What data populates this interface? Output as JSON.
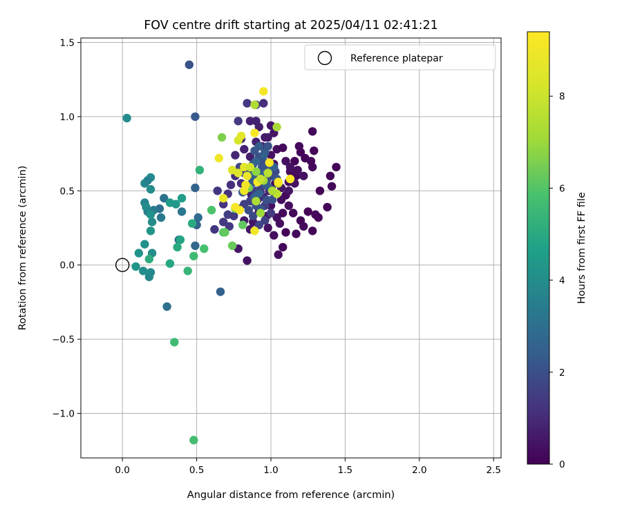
{
  "chart_data": {
    "type": "scatter",
    "title": "FOV centre drift starting at 2025/04/11 02:41:21",
    "xlabel": "Angular distance from reference (arcmin)",
    "ylabel": "Rotation from reference (arcmin)",
    "colorbar_label": "Hours from first FF file",
    "xlim": [
      -0.28,
      2.55
    ],
    "ylim": [
      -1.3,
      1.53
    ],
    "x_ticks": [
      0.0,
      0.5,
      1.0,
      1.5,
      2.0,
      2.5
    ],
    "x_tick_labels": [
      "0.0",
      "0.5",
      "1.0",
      "1.5",
      "2.0",
      "2.5"
    ],
    "y_ticks": [
      -1.0,
      -0.5,
      0.0,
      0.5,
      1.0,
      1.5
    ],
    "y_tick_labels": [
      "−1.0",
      "−0.5",
      "0.0",
      "0.5",
      "1.0",
      "1.5"
    ],
    "colorbar_range": [
      0,
      9.4
    ],
    "colorbar_ticks": [
      0,
      2,
      4,
      6,
      8
    ],
    "colorbar_tick_labels": [
      "0",
      "2",
      "4",
      "6",
      "8"
    ],
    "colormap": "viridis",
    "grid": true,
    "legend": {
      "position": "top-right",
      "label": "Reference platepar"
    },
    "reference_point": {
      "x": 0.0,
      "y": 0.0
    },
    "points": [
      [
        1.25,
        0.36,
        0.1
      ],
      [
        1.2,
        0.3,
        0.1
      ],
      [
        1.3,
        0.34,
        0.2
      ],
      [
        1.15,
        0.35,
        0.2
      ],
      [
        1.28,
        0.23,
        0.1
      ],
      [
        1.05,
        0.07,
        0.3
      ],
      [
        1.08,
        0.12,
        0.2
      ],
      [
        1.02,
        0.2,
        0.3
      ],
      [
        0.98,
        0.25,
        0.4
      ],
      [
        1.1,
        0.22,
        0.1
      ],
      [
        1.17,
        0.21,
        0.2
      ],
      [
        1.22,
        0.26,
        0.2
      ],
      [
        1.32,
        0.32,
        0.1
      ],
      [
        1.38,
        0.39,
        0.1
      ],
      [
        1.44,
        0.66,
        0.1
      ],
      [
        1.4,
        0.6,
        0.1
      ],
      [
        1.41,
        0.53,
        0.2
      ],
      [
        1.33,
        0.5,
        0.1
      ],
      [
        1.29,
        0.77,
        0.1
      ],
      [
        1.28,
        0.9,
        0.2
      ],
      [
        1.23,
        0.72,
        0.1
      ],
      [
        1.27,
        0.7,
        0.2
      ],
      [
        1.28,
        0.66,
        0.2
      ],
      [
        1.2,
        0.76,
        0.1
      ],
      [
        1.19,
        0.8,
        0.2
      ],
      [
        1.16,
        0.7,
        0.1
      ],
      [
        1.13,
        0.63,
        0.2
      ],
      [
        1.17,
        0.6,
        0.2
      ],
      [
        1.12,
        0.56,
        0.3
      ],
      [
        1.1,
        0.47,
        0.2
      ],
      [
        1.07,
        0.44,
        0.3
      ],
      [
        1.03,
        0.55,
        0.3
      ],
      [
        1.0,
        0.4,
        0.3
      ],
      [
        0.97,
        0.33,
        0.4
      ],
      [
        0.92,
        0.36,
        0.4
      ],
      [
        0.88,
        0.29,
        0.5
      ],
      [
        0.86,
        0.24,
        0.5
      ],
      [
        0.82,
        0.3,
        0.6
      ],
      [
        0.78,
        0.11,
        0.5
      ],
      [
        0.84,
        0.03,
        0.4
      ],
      [
        1.04,
        0.32,
        0.3
      ],
      [
        1.06,
        0.28,
        0.3
      ],
      [
        1.08,
        0.35,
        0.2
      ],
      [
        1.12,
        0.4,
        0.3
      ],
      [
        1.0,
        0.74,
        0.4
      ],
      [
        1.04,
        0.78,
        0.3
      ],
      [
        1.08,
        0.79,
        0.2
      ],
      [
        1.1,
        0.7,
        0.3
      ],
      [
        1.02,
        0.68,
        0.3
      ],
      [
        0.99,
        0.61,
        0.4
      ],
      [
        0.95,
        0.56,
        0.5
      ],
      [
        0.93,
        0.6,
        0.6
      ],
      [
        0.9,
        0.62,
        0.6
      ],
      [
        0.86,
        0.73,
        0.7
      ],
      [
        0.82,
        0.78,
        0.8
      ],
      [
        0.8,
        0.85,
        0.9
      ],
      [
        0.76,
        0.74,
        0.9
      ],
      [
        0.9,
        0.83,
        0.8
      ],
      [
        0.94,
        0.8,
        0.7
      ],
      [
        0.98,
        0.86,
        0.6
      ],
      [
        1.02,
        0.89,
        0.5
      ],
      [
        1.0,
        0.94,
        0.5
      ],
      [
        0.96,
        0.86,
        0.6
      ],
      [
        0.92,
        0.93,
        0.7
      ],
      [
        0.86,
        0.97,
        0.8
      ],
      [
        0.9,
        0.97,
        0.8
      ],
      [
        0.95,
        1.09,
        1.1
      ],
      [
        0.84,
        1.09,
        1.3
      ],
      [
        0.9,
        1.08,
        1.2
      ],
      [
        0.78,
        0.97,
        1.4
      ],
      [
        1.13,
        0.66,
        0.4
      ],
      [
        1.18,
        0.64,
        0.3
      ],
      [
        1.22,
        0.6,
        0.4
      ],
      [
        1.16,
        0.55,
        0.4
      ],
      [
        1.12,
        0.5,
        0.5
      ],
      [
        1.07,
        0.52,
        0.5
      ],
      [
        1.03,
        0.48,
        0.6
      ],
      [
        0.99,
        0.5,
        0.6
      ],
      [
        0.95,
        0.46,
        0.7
      ],
      [
        0.91,
        0.44,
        0.8
      ],
      [
        0.87,
        0.47,
        0.8
      ],
      [
        0.83,
        0.5,
        0.9
      ],
      [
        0.8,
        0.55,
        1.0
      ],
      [
        0.76,
        0.6,
        1.1
      ],
      [
        0.73,
        0.54,
        1.1
      ],
      [
        0.71,
        0.48,
        1.2
      ],
      [
        0.68,
        0.41,
        1.2
      ],
      [
        0.64,
        0.5,
        1.3
      ],
      [
        0.62,
        0.24,
        1.3
      ],
      [
        0.68,
        0.29,
        1.4
      ],
      [
        0.72,
        0.26,
        1.4
      ],
      [
        0.71,
        0.34,
        1.5
      ],
      [
        0.75,
        0.33,
        1.4
      ],
      [
        0.78,
        0.38,
        1.6
      ],
      [
        0.82,
        0.41,
        1.5
      ],
      [
        0.86,
        0.43,
        1.6
      ],
      [
        0.9,
        0.5,
        1.7
      ],
      [
        0.94,
        0.53,
        1.7
      ],
      [
        0.97,
        0.57,
        1.8
      ],
      [
        1.0,
        0.6,
        1.9
      ],
      [
        1.03,
        0.63,
        1.8
      ],
      [
        0.99,
        0.67,
        1.9
      ],
      [
        0.95,
        0.7,
        2.0
      ],
      [
        0.92,
        0.73,
        1.9
      ],
      [
        0.88,
        0.68,
        2.0
      ],
      [
        0.85,
        0.65,
        1.9
      ],
      [
        0.82,
        0.62,
        1.8
      ],
      [
        0.79,
        0.66,
        1.7
      ],
      [
        0.93,
        0.49,
        1.6
      ],
      [
        0.96,
        0.4,
        1.5
      ],
      [
        1.0,
        0.35,
        1.4
      ],
      [
        0.96,
        0.3,
        1.6
      ],
      [
        0.92,
        0.27,
        1.7
      ],
      [
        0.88,
        0.33,
        1.8
      ],
      [
        0.85,
        0.37,
        1.9
      ],
      [
        0.9,
        0.4,
        2.0
      ],
      [
        0.93,
        0.38,
        2.1
      ],
      [
        0.97,
        0.44,
        2.0
      ],
      [
        1.01,
        0.44,
        2.1
      ],
      [
        1.04,
        0.58,
        2.2
      ],
      [
        0.98,
        0.64,
        2.2
      ],
      [
        0.94,
        0.66,
        2.1
      ],
      [
        0.91,
        0.58,
        2.3
      ],
      [
        0.87,
        0.55,
        2.2
      ],
      [
        0.84,
        0.52,
        2.3
      ],
      [
        0.81,
        0.49,
        2.4
      ],
      [
        0.88,
        0.58,
        2.4
      ],
      [
        0.93,
        0.61,
        2.5
      ],
      [
        0.97,
        0.54,
        2.4
      ],
      [
        1.0,
        0.51,
        2.6
      ],
      [
        1.02,
        0.66,
        2.5
      ],
      [
        0.96,
        0.76,
        2.3
      ],
      [
        0.92,
        0.8,
        2.4
      ],
      [
        0.89,
        0.77,
        2.2
      ],
      [
        0.98,
        0.8,
        2.1
      ],
      [
        0.95,
        0.74,
        2.5
      ],
      [
        0.9,
        0.7,
        2.6
      ],
      [
        0.86,
        0.61,
        2.7
      ],
      [
        0.89,
        0.46,
        2.5
      ],
      [
        0.92,
        0.48,
        2.6
      ],
      [
        0.45,
        1.35,
        2.1
      ],
      [
        0.49,
        1.0,
        2.3
      ],
      [
        0.49,
        0.52,
        2.6
      ],
      [
        0.51,
        0.32,
        2.9
      ],
      [
        0.5,
        0.27,
        2.5
      ],
      [
        0.49,
        0.13,
        2.7
      ],
      [
        0.66,
        -0.18,
        2.5
      ],
      [
        0.3,
        -0.28,
        3.0
      ],
      [
        0.38,
        0.17,
        2.8
      ],
      [
        0.4,
        0.36,
        3.2
      ],
      [
        0.28,
        0.45,
        3.1
      ],
      [
        0.25,
        0.38,
        3.0
      ],
      [
        0.26,
        0.32,
        3.3
      ],
      [
        0.21,
        0.37,
        3.4
      ],
      [
        0.17,
        0.36,
        3.4
      ],
      [
        0.15,
        0.42,
        3.7
      ],
      [
        0.16,
        0.39,
        3.9
      ],
      [
        0.15,
        0.55,
        3.8
      ],
      [
        0.19,
        0.59,
        3.9
      ],
      [
        0.17,
        0.57,
        3.6
      ],
      [
        0.19,
        0.51,
        4.0
      ],
      [
        0.19,
        0.34,
        4.2
      ],
      [
        0.2,
        0.29,
        4.0
      ],
      [
        0.19,
        0.23,
        4.3
      ],
      [
        0.2,
        0.08,
        4.0
      ],
      [
        0.15,
        0.14,
        4.1
      ],
      [
        0.11,
        0.08,
        4.2
      ],
      [
        0.09,
        -0.01,
        4.3
      ],
      [
        0.14,
        -0.04,
        4.0
      ],
      [
        0.19,
        -0.05,
        3.9
      ],
      [
        0.18,
        -0.08,
        3.8
      ],
      [
        0.03,
        0.99,
        4.0
      ],
      [
        0.32,
        0.42,
        4.5
      ],
      [
        0.36,
        0.41,
        4.4
      ],
      [
        0.4,
        0.45,
        4.6
      ],
      [
        0.39,
        0.17,
        4.8
      ],
      [
        0.37,
        0.12,
        5.0
      ],
      [
        0.32,
        0.01,
        4.9
      ],
      [
        0.18,
        0.04,
        5.1
      ],
      [
        0.47,
        0.28,
        5.0
      ],
      [
        0.52,
        0.64,
        5.3
      ],
      [
        0.44,
        -0.04,
        5.4
      ],
      [
        0.35,
        -0.52,
        5.6
      ],
      [
        0.48,
        -1.18,
        5.7
      ],
      [
        0.48,
        0.06,
        5.6
      ],
      [
        0.55,
        0.11,
        5.8
      ],
      [
        0.6,
        0.37,
        5.9
      ],
      [
        0.68,
        0.22,
        6.0
      ],
      [
        0.69,
        0.22,
        6.2
      ],
      [
        0.74,
        0.13,
        6.3
      ],
      [
        0.76,
        0.38,
        6.4
      ],
      [
        0.81,
        0.27,
        6.2
      ],
      [
        0.67,
        0.86,
        6.6
      ],
      [
        0.85,
        0.52,
        6.5
      ],
      [
        0.9,
        0.63,
        6.8
      ],
      [
        0.93,
        0.35,
        7.0
      ],
      [
        0.9,
        0.43,
        7.3
      ],
      [
        0.95,
        0.57,
        7.1
      ],
      [
        0.89,
        1.08,
        7.4
      ],
      [
        0.98,
        0.62,
        7.6
      ],
      [
        1.05,
        0.55,
        7.8
      ],
      [
        1.04,
        0.48,
        7.7
      ],
      [
        1.01,
        0.5,
        7.4
      ],
      [
        1.04,
        0.93,
        7.2
      ],
      [
        0.78,
        0.84,
        8.2
      ],
      [
        0.8,
        0.87,
        8.6
      ],
      [
        0.82,
        0.66,
        8.7
      ],
      [
        0.84,
        0.6,
        8.9
      ],
      [
        0.82,
        0.5,
        9.0
      ],
      [
        0.83,
        0.54,
        9.1
      ],
      [
        0.76,
        0.39,
        9.2
      ],
      [
        0.79,
        0.37,
        9.3
      ],
      [
        0.95,
        1.17,
        9.1
      ],
      [
        0.89,
        0.89,
        9.2
      ],
      [
        0.89,
        0.23,
        9.0
      ],
      [
        0.91,
        0.56,
        9.3
      ],
      [
        0.99,
        0.69,
        9.4
      ],
      [
        1.05,
        0.56,
        9.3
      ],
      [
        1.13,
        0.58,
        9.3
      ],
      [
        0.68,
        0.45,
        8.8
      ],
      [
        0.65,
        0.72,
        9.0
      ],
      [
        0.78,
        0.62,
        8.5
      ],
      [
        0.86,
        0.66,
        8.1
      ],
      [
        0.74,
        0.64,
        8.4
      ],
      [
        0.93,
        0.58,
        7.9
      ]
    ]
  }
}
